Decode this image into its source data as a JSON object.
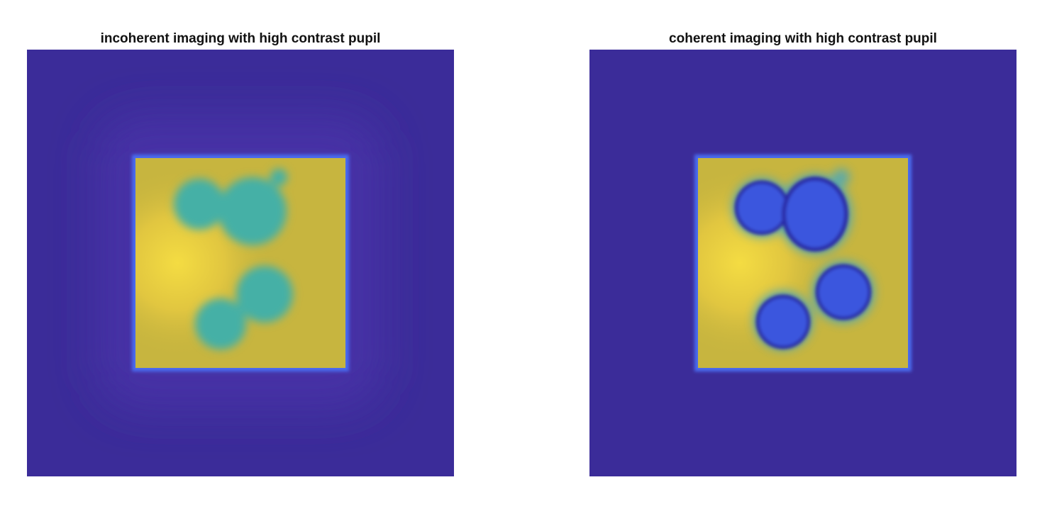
{
  "panels": [
    {
      "title": "incoherent imaging with high contrast pupil",
      "image": "simulated-incoherent-image-of-square-with-four-blurred-blobs"
    },
    {
      "title": "coherent imaging with high contrast pupil",
      "image": "simulated-coherent-image-of-square-with-four-dark-ringed-blobs"
    }
  ],
  "colors": {
    "background": "#3b2c99",
    "square_fill": "#c7b53f",
    "square_bright": "#f4dc42",
    "edge_glow": "#4a6cf0",
    "blob_incoherent": "#45b0a6",
    "blob_coherent": "#3a56de",
    "blob_coherent_ring": "#2c2aa6"
  }
}
